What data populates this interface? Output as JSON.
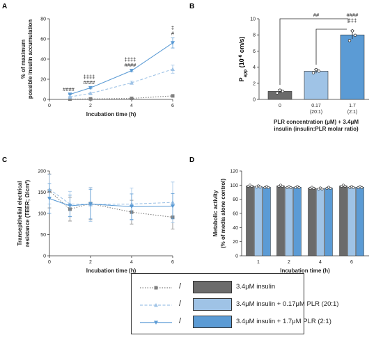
{
  "colors": {
    "insulin": "#7f7f7f",
    "plr_20_1": "#9fc3e6",
    "plr_2_1": "#5b9bd5",
    "bar_dark": "#6b6b6b"
  },
  "chart_data": [
    {
      "panel": "A",
      "type": "line",
      "xlabel": "Incubation time (h)",
      "ylabel": "% of maximum possible insulin accumulation",
      "xlim": [
        0,
        6
      ],
      "ylim": [
        0,
        80
      ],
      "xticks": [
        0,
        2,
        4,
        6
      ],
      "yticks": [
        0,
        20,
        40,
        60,
        80
      ],
      "x": [
        1,
        2,
        4,
        6
      ],
      "series": [
        {
          "key": "insulin",
          "values": [
            0.3,
            0.5,
            1.0,
            3.5
          ],
          "err": [
            0.3,
            0.3,
            0.5,
            1.0
          ],
          "style": "dotted",
          "marker": "square"
        },
        {
          "key": "plr_20_1",
          "values": [
            2.5,
            6.0,
            16.5,
            30.0
          ],
          "err": [
            0.5,
            1.0,
            1.5,
            4.0
          ],
          "style": "dashed",
          "marker": "triangle"
        },
        {
          "key": "plr_2_1",
          "values": [
            5.0,
            11.5,
            28.5,
            56.0
          ],
          "err": [
            0.5,
            1.0,
            1.0,
            5.0
          ],
          "style": "solid",
          "marker": "tri-down"
        }
      ],
      "annotations": [
        {
          "x": 1,
          "lines": [
            "####"
          ]
        },
        {
          "x": 2,
          "lines": [
            "‡‡‡‡",
            "####"
          ]
        },
        {
          "x": 4,
          "lines": [
            "‡‡‡‡",
            "####"
          ]
        },
        {
          "x": 6,
          "lines": [
            "‡",
            "#"
          ]
        }
      ]
    },
    {
      "panel": "B",
      "type": "bar",
      "ylabel_main": "P",
      "ylabel_sub": "app",
      "ylabel_rest": " (10",
      "ylabel_sup": "-6",
      "ylabel_end": " cm/s)",
      "xlabel": "PLR concentration (μM) + 3.4μM insulin (insulin:PLR molar ratio)",
      "xlabel_lines": [
        "PLR concentration (μM) + 3.4μM",
        "insulin (insulin:PLR molar ratio)"
      ],
      "ylim": [
        0,
        10
      ],
      "yticks": [
        0,
        2,
        4,
        6,
        8,
        10
      ],
      "categories": [
        [
          "0"
        ],
        [
          "0.17",
          "(20:1)"
        ],
        [
          "1.7",
          "(2:1)"
        ]
      ],
      "values": [
        1.0,
        3.5,
        8.0
      ],
      "err": [
        0.2,
        0.25,
        0.5
      ],
      "points": [
        [
          0.8,
          1.0,
          1.15
        ],
        [
          3.3,
          3.5,
          3.7
        ],
        [
          7.3,
          7.95,
          8.5
        ]
      ],
      "bar_keys": [
        "bar_dark",
        "plr_20_1",
        "plr_2_1"
      ],
      "sig": [
        {
          "type": "bracket",
          "from": 0,
          "to": 2,
          "label": "##"
        },
        {
          "type": "bracket",
          "from": 1,
          "to": 2,
          "label": ""
        },
        {
          "type": "above",
          "bar": 2,
          "lines": [
            "####",
            "‡‡‡"
          ]
        }
      ]
    },
    {
      "panel": "C",
      "type": "line",
      "xlabel": "Incubation time (h)",
      "ylabel_lines": [
        "Transepithelial electrical",
        "resistance (TEER; Ω/cm²)"
      ],
      "xlim": [
        0,
        6
      ],
      "ylim": [
        0,
        200
      ],
      "xticks": [
        0,
        2,
        4,
        6
      ],
      "yticks": [
        0,
        50,
        100,
        150,
        200
      ],
      "x": [
        0,
        1,
        2,
        4,
        6
      ],
      "series": [
        {
          "key": "insulin",
          "values": [
            153,
            110,
            123,
            103,
            91
          ],
          "err": [
            40,
            28,
            38,
            28,
            28
          ],
          "style": "dotted",
          "marker": "square"
        },
        {
          "key": "plr_20_1",
          "values": [
            157,
            122,
            121,
            122,
            126
          ],
          "err": [
            35,
            30,
            40,
            38,
            48
          ],
          "style": "dashed",
          "marker": "triangle"
        },
        {
          "key": "plr_2_1",
          "values": [
            135,
            118,
            122,
            116,
            117
          ],
          "err": [
            35,
            25,
            35,
            30,
            30
          ],
          "style": "solid",
          "marker": "tri-down"
        }
      ]
    },
    {
      "panel": "D",
      "type": "bar",
      "xlabel": "Incubation time (h)",
      "ylabel_lines": [
        "Metabolic activity",
        "(% of media alone control)"
      ],
      "ylim": [
        0,
        120
      ],
      "yticks": [
        0,
        20,
        40,
        60,
        80,
        100,
        120
      ],
      "categories": [
        "1",
        "2",
        "4",
        "6"
      ],
      "series": [
        {
          "key": "bar_dark",
          "values": [
            99,
            99,
            96,
            99
          ]
        },
        {
          "key": "plr_20_1",
          "values": [
            98,
            97,
            95,
            97
          ]
        },
        {
          "key": "plr_2_1",
          "values": [
            97,
            97,
            96,
            97
          ]
        }
      ]
    }
  ],
  "legend": [
    {
      "slash": "/",
      "label": "3.4μM insulin",
      "line_key": "insulin",
      "bar_key": "bar_dark",
      "style": "dotted",
      "marker": "square"
    },
    {
      "slash": "/",
      "label": "3.4μM insulin + 0.17μM PLR (20:1)",
      "line_key": "plr_20_1",
      "bar_key": "plr_20_1",
      "style": "dashed",
      "marker": "triangle"
    },
    {
      "slash": "/",
      "label": "3.4μM insulin + 1.7μM PLR (2:1)",
      "line_key": "plr_2_1",
      "bar_key": "plr_2_1",
      "style": "solid",
      "marker": "tri-down"
    }
  ]
}
